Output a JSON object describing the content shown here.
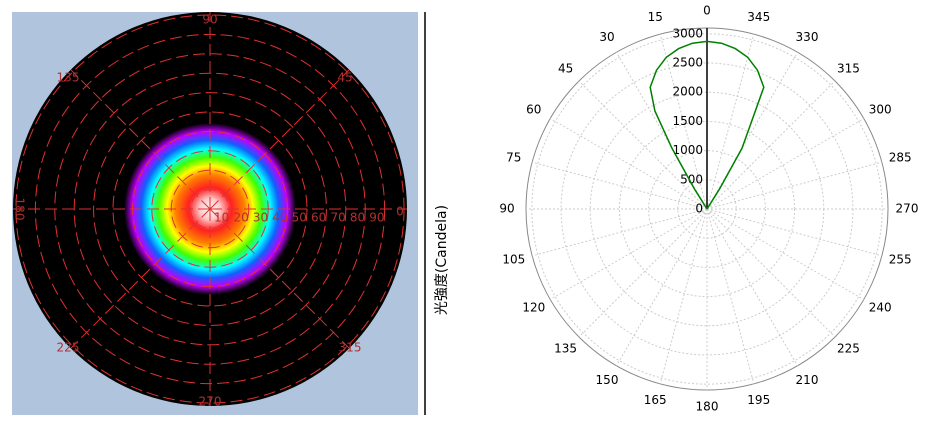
{
  "left_panel": {
    "angle_labels": [
      "90",
      "135",
      "45",
      "180",
      "0",
      "225",
      "315",
      "270"
    ],
    "radius_labels": [
      "10",
      "20",
      "30",
      "40",
      "50",
      "60",
      "70",
      "80",
      "90"
    ],
    "axis_title": "光強度(Candela)"
  },
  "chart_data": {
    "type": "polar",
    "angle_ticks": [
      0,
      15,
      30,
      45,
      60,
      75,
      90,
      105,
      120,
      135,
      150,
      165,
      180,
      195,
      210,
      225,
      240,
      255,
      270,
      285,
      300,
      315,
      330,
      345
    ],
    "rlim": [
      0,
      3100
    ],
    "rticks": [
      0,
      500,
      1000,
      1500,
      2000,
      2500,
      3000
    ],
    "series": [
      {
        "color": "#008000",
        "theta": [
          326,
          328,
          330,
          335,
          340,
          345,
          350,
          355,
          0,
          5,
          10,
          15,
          20,
          25,
          28,
          30,
          32,
          34
        ],
        "values": [
          0,
          400,
          1200,
          2300,
          2530,
          2690,
          2790,
          2850,
          2870,
          2850,
          2790,
          2690,
          2530,
          2300,
          1900,
          1200,
          400,
          0
        ]
      }
    ]
  }
}
